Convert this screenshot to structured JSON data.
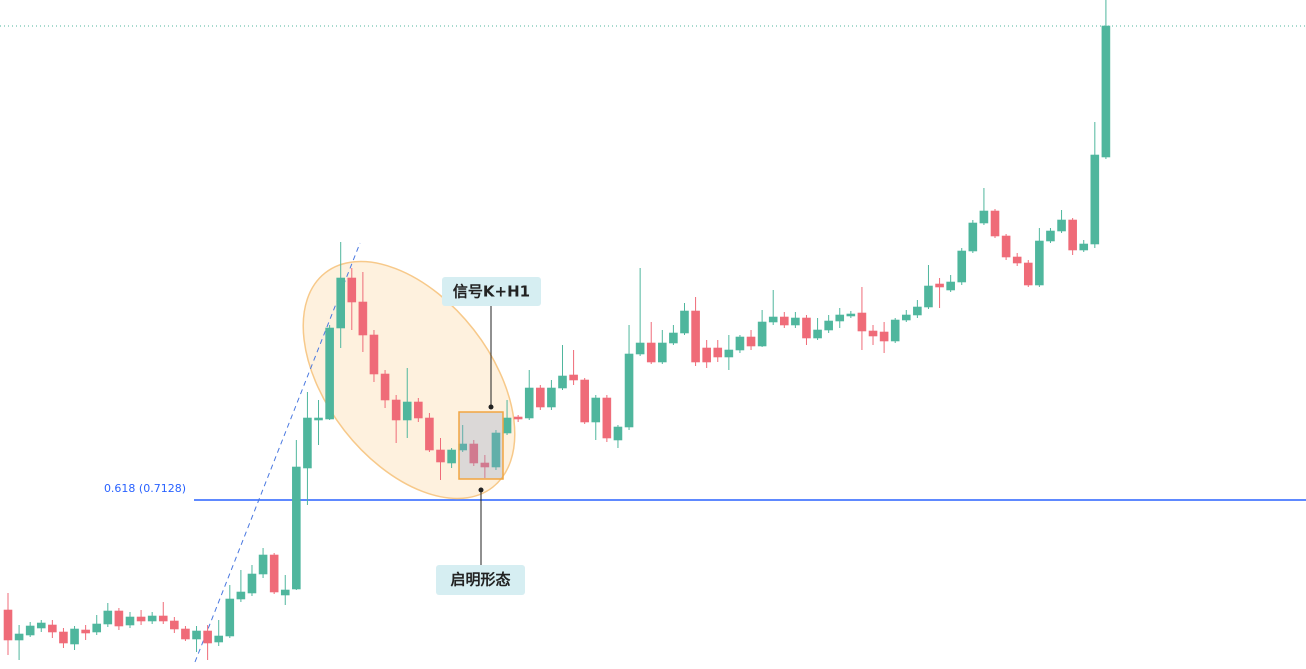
{
  "chart_data": {
    "type": "candlestick",
    "ylim": [
      0.679,
      0.8128
    ],
    "up_color": "#4fb69d",
    "down_color": "#ef6b78",
    "open": [
      0.6908,
      0.6848,
      0.6858,
      0.6872,
      0.6878,
      0.6864,
      0.684,
      0.6868,
      0.6864,
      0.688,
      0.6906,
      0.6878,
      0.6894,
      0.6886,
      0.6896,
      0.6886,
      0.687,
      0.685,
      0.6866,
      0.6844,
      0.6856,
      0.693,
      0.6942,
      0.698,
      0.7018,
      0.6938,
      0.695,
      0.7192,
      0.7288,
      0.729,
      0.7472,
      0.7572,
      0.7524,
      0.7458,
      0.738,
      0.7328,
      0.7288,
      0.7324,
      0.7292,
      0.7228,
      0.7202,
      0.7228,
      0.724,
      0.7202,
      0.7194,
      0.7262,
      0.7294,
      0.7292,
      0.7352,
      0.7314,
      0.7352,
      0.7378,
      0.7368,
      0.7284,
      0.7332,
      0.7248,
      0.7274,
      0.742,
      0.7442,
      0.7404,
      0.7442,
      0.7462,
      0.7506,
      0.7432,
      0.7432,
      0.7414,
      0.7428,
      0.7454,
      0.7436,
      0.7484,
      0.7494,
      0.7478,
      0.7492,
      0.7452,
      0.7468,
      0.7486,
      0.7496,
      0.7502,
      0.7466,
      0.7464,
      0.7446,
      0.7488,
      0.7498,
      0.7514,
      0.756,
      0.7548,
      0.7564,
      0.7626,
      0.7682,
      0.7706,
      0.7656,
      0.7614,
      0.7602,
      0.7558,
      0.7646,
      0.7666,
      0.7688,
      0.7628,
      0.764,
      0.7814
    ],
    "high": [
      0.6942,
      0.6878,
      0.6884,
      0.6888,
      0.6888,
      0.6872,
      0.6876,
      0.6878,
      0.6898,
      0.6922,
      0.6912,
      0.6904,
      0.6908,
      0.6904,
      0.6924,
      0.6894,
      0.6876,
      0.6876,
      0.6878,
      0.6888,
      0.6958,
      0.6988,
      0.6998,
      0.7032,
      0.7022,
      0.6978,
      0.7248,
      0.7344,
      0.7328,
      0.7478,
      0.7644,
      0.7592,
      0.7584,
      0.7468,
      0.7388,
      0.7338,
      0.7392,
      0.7332,
      0.7302,
      0.7252,
      0.7232,
      0.7278,
      0.7248,
      0.7218,
      0.7268,
      0.7328,
      0.7298,
      0.7388,
      0.7358,
      0.7368,
      0.7438,
      0.7428,
      0.7372,
      0.7338,
      0.7338,
      0.7278,
      0.7478,
      0.7592,
      0.7484,
      0.7468,
      0.7478,
      0.7522,
      0.7534,
      0.7448,
      0.7448,
      0.7458,
      0.7458,
      0.7468,
      0.7508,
      0.7548,
      0.7504,
      0.7504,
      0.7498,
      0.7492,
      0.7498,
      0.7512,
      0.7506,
      0.7554,
      0.7478,
      0.7484,
      0.7492,
      0.7508,
      0.7528,
      0.7598,
      0.7572,
      0.7578,
      0.7632,
      0.7688,
      0.7752,
      0.771,
      0.766,
      0.7622,
      0.7608,
      0.7672,
      0.7672,
      0.7708,
      0.7692,
      0.7648,
      0.7884,
      0.8128
    ],
    "low": [
      0.6818,
      0.6808,
      0.6854,
      0.6864,
      0.6852,
      0.6832,
      0.6828,
      0.6848,
      0.6858,
      0.6874,
      0.6868,
      0.6872,
      0.6878,
      0.688,
      0.688,
      0.6862,
      0.6846,
      0.6824,
      0.6808,
      0.6836,
      0.6852,
      0.6924,
      0.6936,
      0.6972,
      0.694,
      0.6918,
      0.6948,
      0.7118,
      0.7238,
      0.7288,
      0.7432,
      0.7468,
      0.7424,
      0.7364,
      0.7312,
      0.7242,
      0.7252,
      0.7284,
      0.7224,
      0.7168,
      0.7192,
      0.7224,
      0.7196,
      0.7172,
      0.7188,
      0.7258,
      0.7284,
      0.7288,
      0.7308,
      0.7308,
      0.7348,
      0.7358,
      0.728,
      0.7248,
      0.7244,
      0.7232,
      0.7268,
      0.7416,
      0.74,
      0.74,
      0.7438,
      0.7458,
      0.7396,
      0.7392,
      0.7404,
      0.7388,
      0.7422,
      0.7428,
      0.7434,
      0.7478,
      0.7472,
      0.7472,
      0.7438,
      0.7448,
      0.7462,
      0.7472,
      0.7492,
      0.7428,
      0.7438,
      0.7422,
      0.7442,
      0.7484,
      0.7492,
      0.751,
      0.7512,
      0.7544,
      0.7558,
      0.7622,
      0.7678,
      0.7652,
      0.7608,
      0.7596,
      0.7554,
      0.7554,
      0.7642,
      0.7662,
      0.7618,
      0.7624,
      0.7632,
      0.781
    ],
    "close": [
      0.6848,
      0.686,
      0.6876,
      0.6882,
      0.6864,
      0.6842,
      0.687,
      0.6862,
      0.688,
      0.6906,
      0.6876,
      0.6894,
      0.6886,
      0.6896,
      0.6886,
      0.687,
      0.685,
      0.6866,
      0.6842,
      0.6856,
      0.693,
      0.6944,
      0.698,
      0.7018,
      0.6944,
      0.6948,
      0.7194,
      0.7292,
      0.7292,
      0.7472,
      0.7572,
      0.7524,
      0.7458,
      0.738,
      0.7328,
      0.7288,
      0.7324,
      0.7292,
      0.7228,
      0.7204,
      0.7228,
      0.724,
      0.7202,
      0.7194,
      0.7262,
      0.7292,
      0.729,
      0.7352,
      0.7314,
      0.7352,
      0.7376,
      0.7368,
      0.7284,
      0.7332,
      0.7252,
      0.7274,
      0.742,
      0.7442,
      0.7404,
      0.7442,
      0.7462,
      0.7506,
      0.7404,
      0.7404,
      0.7414,
      0.7428,
      0.7454,
      0.7436,
      0.7484,
      0.7494,
      0.7478,
      0.7492,
      0.7452,
      0.7468,
      0.7486,
      0.7498,
      0.75,
      0.7466,
      0.7456,
      0.7446,
      0.7488,
      0.7498,
      0.7514,
      0.7556,
      0.7554,
      0.7564,
      0.7626,
      0.7682,
      0.7706,
      0.7656,
      0.7614,
      0.7602,
      0.7558,
      0.7646,
      0.7666,
      0.7688,
      0.7628,
      0.764,
      0.7818,
      0.8076
    ],
    "fib_level": {
      "value": 0.7128,
      "label": "0.618 (0.7128)",
      "color": "#2962ff"
    },
    "annotations": [
      "信号K+H1",
      "启明形态"
    ]
  }
}
